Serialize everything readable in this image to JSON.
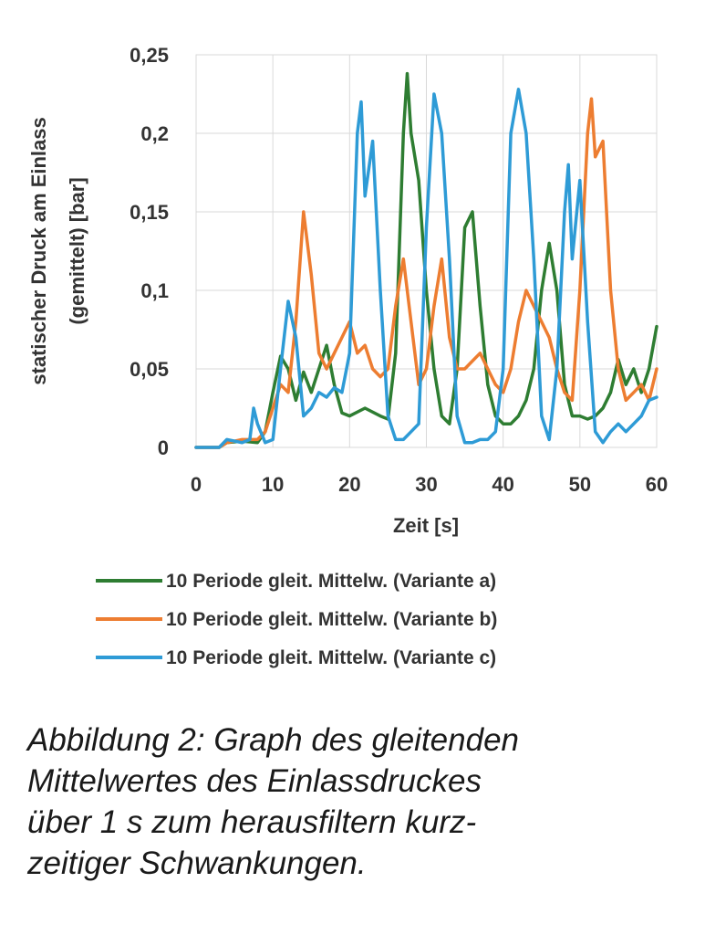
{
  "chart_data": {
    "type": "line",
    "xlabel": "Zeit [s]",
    "ylabel_lines": [
      "statischer Druck am Einlass",
      "(gemittelt) [bar]"
    ],
    "xlim": [
      0,
      60
    ],
    "ylim": [
      0,
      0.25
    ],
    "x_ticks": [
      0,
      10,
      20,
      30,
      40,
      50,
      60
    ],
    "x_tick_labels": [
      "0",
      "10",
      "20",
      "30",
      "40",
      "50",
      "60"
    ],
    "y_ticks": [
      0,
      0.05,
      0.1,
      0.15,
      0.2,
      0.25
    ],
    "y_tick_labels": [
      "0",
      "0,05",
      "0,1",
      "0,15",
      "0,2",
      "0,25"
    ],
    "grid": true,
    "legend_position": "bottom",
    "series": [
      {
        "name": "10 Periode gleit. Mittelw. (Variante a)",
        "color": "#2e7d32",
        "points": [
          [
            0,
            0
          ],
          [
            3,
            0
          ],
          [
            4,
            0.003
          ],
          [
            6,
            0.004
          ],
          [
            8,
            0.003
          ],
          [
            9,
            0.01
          ],
          [
            10,
            0.035
          ],
          [
            11,
            0.058
          ],
          [
            12,
            0.05
          ],
          [
            13,
            0.03
          ],
          [
            14,
            0.048
          ],
          [
            15,
            0.035
          ],
          [
            16,
            0.05
          ],
          [
            17,
            0.065
          ],
          [
            18,
            0.04
          ],
          [
            19,
            0.022
          ],
          [
            20,
            0.02
          ],
          [
            22,
            0.025
          ],
          [
            24,
            0.02
          ],
          [
            25,
            0.018
          ],
          [
            26,
            0.06
          ],
          [
            27,
            0.2
          ],
          [
            27.5,
            0.238
          ],
          [
            28,
            0.2
          ],
          [
            29,
            0.17
          ],
          [
            30,
            0.1
          ],
          [
            31,
            0.05
          ],
          [
            32,
            0.02
          ],
          [
            33,
            0.015
          ],
          [
            34,
            0.05
          ],
          [
            35,
            0.14
          ],
          [
            36,
            0.15
          ],
          [
            37,
            0.09
          ],
          [
            38,
            0.04
          ],
          [
            39,
            0.02
          ],
          [
            40,
            0.015
          ],
          [
            41,
            0.015
          ],
          [
            42,
            0.02
          ],
          [
            43,
            0.03
          ],
          [
            44,
            0.05
          ],
          [
            45,
            0.1
          ],
          [
            46,
            0.13
          ],
          [
            47,
            0.1
          ],
          [
            48,
            0.04
          ],
          [
            49,
            0.02
          ],
          [
            50,
            0.02
          ],
          [
            51,
            0.018
          ],
          [
            52,
            0.02
          ],
          [
            53,
            0.025
          ],
          [
            54,
            0.035
          ],
          [
            55,
            0.056
          ],
          [
            56,
            0.04
          ],
          [
            57,
            0.05
          ],
          [
            58,
            0.035
          ],
          [
            59,
            0.05
          ],
          [
            60,
            0.077
          ]
        ]
      },
      {
        "name": "10 Periode gleit. Mittelw. (Variante b)",
        "color": "#ed7d31",
        "points": [
          [
            0,
            0
          ],
          [
            3,
            0
          ],
          [
            4,
            0.003
          ],
          [
            6,
            0.005
          ],
          [
            8,
            0.005
          ],
          [
            9,
            0.01
          ],
          [
            10,
            0.025
          ],
          [
            11,
            0.04
          ],
          [
            12,
            0.035
          ],
          [
            13,
            0.08
          ],
          [
            14,
            0.15
          ],
          [
            15,
            0.11
          ],
          [
            16,
            0.06
          ],
          [
            17,
            0.05
          ],
          [
            18,
            0.06
          ],
          [
            19,
            0.07
          ],
          [
            20,
            0.08
          ],
          [
            21,
            0.06
          ],
          [
            22,
            0.065
          ],
          [
            23,
            0.05
          ],
          [
            24,
            0.045
          ],
          [
            25,
            0.05
          ],
          [
            26,
            0.09
          ],
          [
            27,
            0.12
          ],
          [
            28,
            0.08
          ],
          [
            29,
            0.04
          ],
          [
            30,
            0.05
          ],
          [
            31,
            0.09
          ],
          [
            32,
            0.12
          ],
          [
            33,
            0.07
          ],
          [
            34,
            0.05
          ],
          [
            35,
            0.05
          ],
          [
            36,
            0.055
          ],
          [
            37,
            0.06
          ],
          [
            38,
            0.05
          ],
          [
            39,
            0.04
          ],
          [
            40,
            0.035
          ],
          [
            41,
            0.05
          ],
          [
            42,
            0.08
          ],
          [
            43,
            0.1
          ],
          [
            44,
            0.09
          ],
          [
            45,
            0.08
          ],
          [
            46,
            0.07
          ],
          [
            47,
            0.05
          ],
          [
            48,
            0.035
          ],
          [
            49,
            0.03
          ],
          [
            50,
            0.1
          ],
          [
            51,
            0.2
          ],
          [
            51.5,
            0.222
          ],
          [
            52,
            0.185
          ],
          [
            53,
            0.195
          ],
          [
            54,
            0.1
          ],
          [
            55,
            0.05
          ],
          [
            56,
            0.03
          ],
          [
            57,
            0.035
          ],
          [
            58,
            0.04
          ],
          [
            59,
            0.03
          ],
          [
            60,
            0.05
          ]
        ]
      },
      {
        "name": "10 Periode gleit. Mittelw. (Variante c)",
        "color": "#2e9bd6",
        "points": [
          [
            0,
            0
          ],
          [
            3,
            0
          ],
          [
            4,
            0.005
          ],
          [
            6,
            0.003
          ],
          [
            7,
            0.005
          ],
          [
            7.5,
            0.025
          ],
          [
            8,
            0.015
          ],
          [
            9,
            0.003
          ],
          [
            10,
            0.005
          ],
          [
            11,
            0.05
          ],
          [
            12,
            0.093
          ],
          [
            13,
            0.07
          ],
          [
            14,
            0.02
          ],
          [
            15,
            0.025
          ],
          [
            16,
            0.035
          ],
          [
            17,
            0.032
          ],
          [
            18,
            0.038
          ],
          [
            19,
            0.035
          ],
          [
            20,
            0.06
          ],
          [
            21,
            0.2
          ],
          [
            21.5,
            0.22
          ],
          [
            22,
            0.16
          ],
          [
            23,
            0.195
          ],
          [
            24,
            0.1
          ],
          [
            25,
            0.02
          ],
          [
            26,
            0.005
          ],
          [
            27,
            0.005
          ],
          [
            28,
            0.01
          ],
          [
            29,
            0.015
          ],
          [
            30,
            0.14
          ],
          [
            31,
            0.225
          ],
          [
            32,
            0.2
          ],
          [
            33,
            0.12
          ],
          [
            34,
            0.02
          ],
          [
            35,
            0.003
          ],
          [
            36,
            0.003
          ],
          [
            37,
            0.005
          ],
          [
            38,
            0.005
          ],
          [
            39,
            0.01
          ],
          [
            40,
            0.05
          ],
          [
            41,
            0.2
          ],
          [
            42,
            0.228
          ],
          [
            43,
            0.2
          ],
          [
            44,
            0.12
          ],
          [
            45,
            0.02
          ],
          [
            46,
            0.005
          ],
          [
            47,
            0.05
          ],
          [
            48,
            0.15
          ],
          [
            48.5,
            0.18
          ],
          [
            49,
            0.12
          ],
          [
            50,
            0.17
          ],
          [
            51,
            0.08
          ],
          [
            52,
            0.01
          ],
          [
            53,
            0.003
          ],
          [
            54,
            0.01
          ],
          [
            55,
            0.015
          ],
          [
            56,
            0.01
          ],
          [
            57,
            0.015
          ],
          [
            58,
            0.02
          ],
          [
            59,
            0.03
          ],
          [
            60,
            0.032
          ]
        ]
      }
    ]
  },
  "caption": {
    "lines": [
      "Abbildung 2: Graph des gleitenden",
      "Mittelwertes des Einlassdruckes",
      "über 1 s zum herausfiltern kurz-",
      "zeitiger Schwankungen."
    ]
  }
}
